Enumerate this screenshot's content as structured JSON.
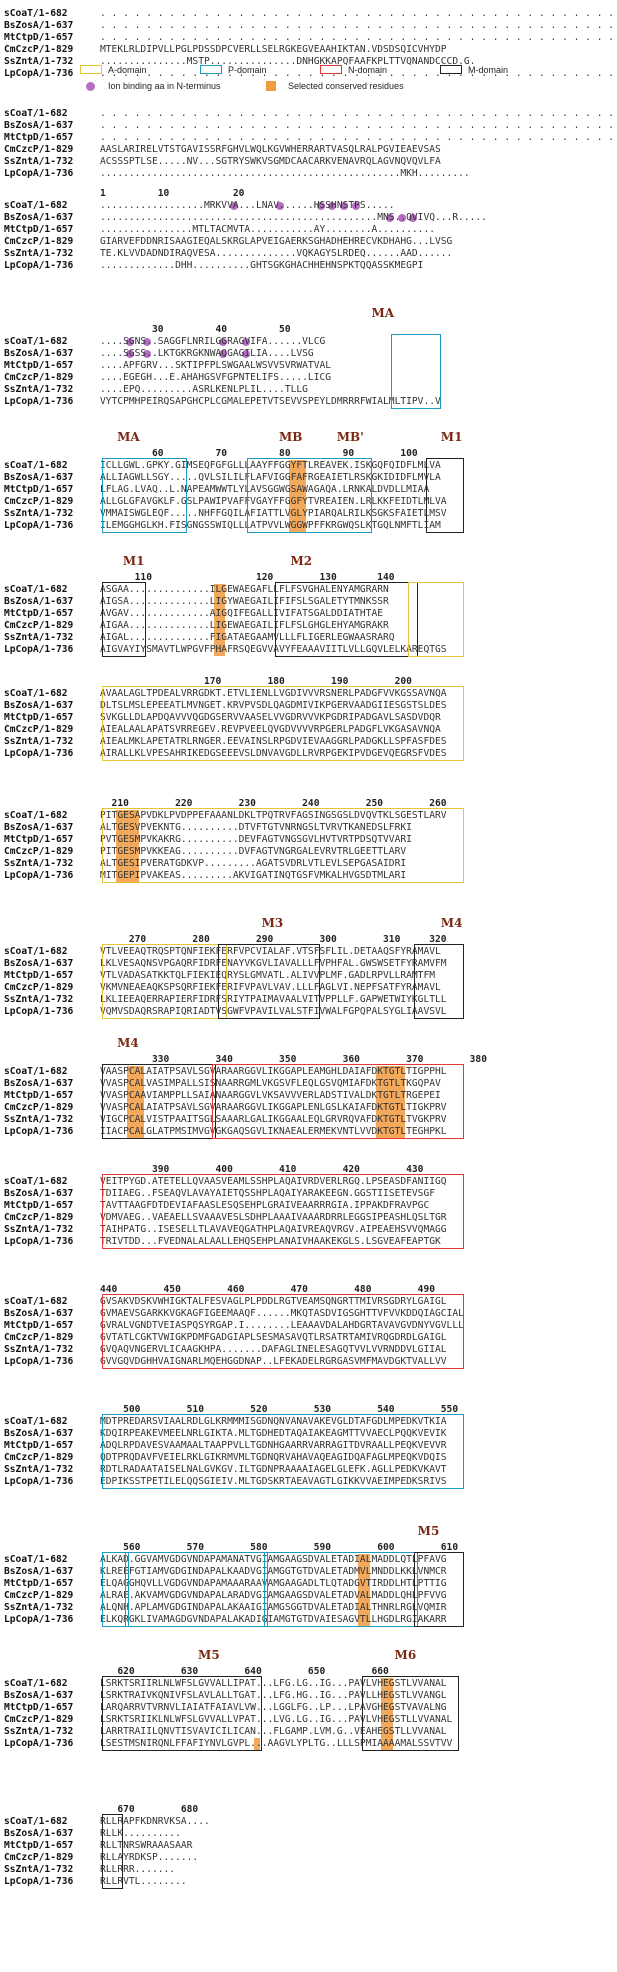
{
  "legend": {
    "a_domain": "A-domain",
    "p_domain": "P-domain",
    "n_domain": "N-domain",
    "m_domain": "M-domain",
    "ion_binding": "Ion binding aa in N-terminus",
    "conserved": "Selected conserved residues",
    "colors": {
      "a": "#e8c43a",
      "p": "#1f9bc0",
      "n": "#e0393a",
      "m": "#222222",
      "ion": "#b46fc4",
      "conserved": "#f19a3e"
    }
  },
  "sequence_names": [
    "sCoaT/1-682",
    "BsZosA/1-637",
    "MtCtpD/1-657",
    "CmCzcP/1-829",
    "SsZntA/1-732",
    "LpCopA/1-736"
  ],
  "blocks": [
    {
      "ruler": "",
      "labels": [],
      "rows": [
        ". . . . . . . . . . . . . . . . . . . . . . . . . . . . . . . . . . . . . . . . . . . . .",
        ". . . . . . . . . . . . . . . . . . . . . . . . . . . . . . . . . . . . . . . . . . . . .",
        ". . . . . . . . . . . . . . . . . . . . . . . . . . . . . . . . . . . . . . . . . . . . .",
        "MTEKLRLDIPVLLPGLPDSSDPCVERLLSELRGKEGVEAAHIKTAN.VDSDSQICVHYDP",
        "...............MSTP...............DNHGKKAPQFAAFKPLTTVQNANDCCCD.G.",
        ". . . . . . . . . . . . . . . . . . . . . . . . . . . . . . . . . . . . . . . . . . . . ."
      ]
    },
    {
      "ruler": "",
      "labels": [],
      "rows": [
        ". . . . . . . . . . . . . . . . . . . . . . . . . . . . . . . . . . . . . . . . . . . . .",
        ". . . . . . . . . . . . . . . . . . . . . . . . . . . . . . . . . . . . . . . . . . . . .",
        ". . . . . . . . . . . . . . . . . . . . . . . . . . . . . . . . . . . . . . . . . . . . .",
        "AASLARIRELVTSTGAVISSRFGHVLWQLKGVWHERRARTVASQLRALPGVIEAEVSAS",
        "ACSSSPTLSE.....NV...SGTRYSWKVSGMDCAACARKVENAVRQLAGVNQVQVLFA",
        "....................................................MKH........."
      ]
    },
    {
      "ruler": "1         10           20",
      "labels": [],
      "rows": [
        "..................MRKVVA...LNAV......HSSHNSTPS.....",
        "................................................MNS..QVIVQ...R.....",
        "................MTLTACMVTA...........AY........A..........",
        "GIARVEFDDNRISAAGIEQALSKRGLAPVEIGAERKSGHADHEHRECVKDHAHG...LVSG",
        "TE.KLVVDADNDIRAQVESA..............VQKAGYSLRDEQ......AAD......",
        ".............DHH..........GHTSGKGHACHHEHNSPKTQQASSKMEGPI"
      ]
    },
    {
      "ruler": "         30         40         50",
      "labels": [
        {
          "text": "MA",
          "col": 48
        }
      ],
      "rows": [
        "....SGNS..SAGGFLNRILGGRAGVIFA......VLCG",
        "....SGSS..LKTGKRGKNWAQGAGILIA....LVSG",
        "....APFGRV...SKTIPFPLSWGAALWSVVSVRWATVAL",
        "....EGEGH...E.AHAHGSVFGPNTELIFS.....LICG",
        "....EPQ.........ASRLKENLPLIL....TLLG",
        "VYTCPMHPEIRQSAPGHCPLCGMALEPETVTSEVVSPEYLDMRRRFWIALMLTIPV..V"
      ]
    },
    {
      "ruler": "         60         70         80         90        100",
      "labels": [
        {
          "text": "MA",
          "col": 4
        },
        {
          "text": "MB",
          "col": 32
        },
        {
          "text": "MB'",
          "col": 42
        },
        {
          "text": "M1",
          "col": 60
        }
      ],
      "rows": [
        "ICLLGWL.GPKY.GIMSEQFGFGLLLAAYFFGGYFTLREAVEK.ISKGQFQIDFLMLVA",
        "ALLIAGWLLSGY.....QVLSILILFLAFVIGGFAFRGEAIETLRSKGKIDIDFLMVLA",
        "LFLAG.LVAQ..L.NAPEAMWWTLYLAVSGGWGSAWAGAQA.LRNKALDVDLLMIAA",
        "ALLGLGFAVGKLF.GSLPAWIPVAFFVGAYFFGGFYTVREAIEN.LRLKKFEIDTLMLVA",
        "VMMAISWGLEQF.....NHFFGQILAFIATTLVGLYPIARQALRILKSGKSFAIETLMSV",
        "ILEMGGHGLKH.FISGNGSSWIQLLLATPVVLWGGWPFFKRGWQSLKTGQLNMFTLIAM"
      ]
    },
    {
      "ruler": "      110                  120        130       140",
      "labels": [
        {
          "text": "M1",
          "col": 5
        },
        {
          "text": "M2",
          "col": 34
        }
      ],
      "rows": [
        "ASGAA..............ILGEWAEGAFLLFLFSVGHALENYAMGRARN",
        "AIGSA..............LIGYWAEGAILIFIFSLSGALETYTMNKSSR",
        "AVGAV..............AIGQIFEGALLIVIFATSGALDDIATHTAE",
        "AIGAA..............LIGEWAEGAILIFLFSLGHGLEHYAMGRAKR",
        "AIGAL..............FIGATAEGAAMVLLLFLIGERLEGWAASRARQ",
        "AIGVAYIYSMAVTLWPGVFPHAFRSQEGVVAVYFEAAAVIITLVLLGQVLELKAREQTGS"
      ]
    },
    {
      "ruler": "                  170        180        190        200",
      "labels": [],
      "rows": [
        "AVAALAGLTPDEALVRRGDKT.ETVLIENLLVGDIVVVRSNERLPADGFVVKGSSAVNQA",
        "DLTSLMSLEPEEATLMVNGET.KRVPVSDLQAGDMIVIKPGERVAADGIIESGSTSLDES",
        "SVKGLLDLAPDQAVVVQGDGSERVVAASELVVGDRVVVKPGDRIPADGAVLSASDVDQR",
        "AIEALAALAPATSVRREGEV.REVPVEELQVGDVVVVRPGERLPADGFLVKGASAVNQA",
        "AIEALMKLAPETATRLRNGER.EEVAINSLRPGDVIEVAAGGRLPADGKLLSPFASFDES",
        "AIRALLKLVPESAHRIKEDGSEEEVSLDNVAVGDLLRVRPGEKIPVDGEVQEGRSFVDES"
      ]
    },
    {
      "ruler": "  210        220        230        240        250        260",
      "labels": [],
      "rows": [
        "PITGESAPVDKLPVDPPEFAAANLDKLTPQTRVFAGSINGSGSLDVQVTKLSGESTLARV",
        "ALTGESVPVEKNTG..........DTVFTGTVNRNGSLTVRVTKANEDSLFRKI",
        "PVTGESMPVKAKRG..........DEVFAGTVNGSGVLHVTVRTPDSQTVVARI",
        "PITGESMPVKKEAG..........DVFAGTVNGRGALEVRVTRLGEETTLARV",
        "ALTGESIPVERATGDKVP.........AGATSVDRLVTLEVLSEPGASAIDRI",
        "MITGEPIPVAKEAS.........AKVIGATINQTGSFVMKALHVGSDTMLARI"
      ]
    },
    {
      "ruler": "     270        280        290        300        310     320",
      "labels": [
        {
          "text": "M3",
          "col": 29
        },
        {
          "text": "M4",
          "col": 60
        }
      ],
      "rows": [
        "VTLVEEAQTRQSPTQNFIEKFERFVPCVIALAF.VTSFSFLIL.DETAAQSFYRAMAVL",
        "LKLVESAQNSVPGAQRFIDRFENAYVKGVLIAVALLLFVPHFAL.GWSWSETFYRAMVFM",
        "VTLVADASATKKTQLFIEKIEQRYSLGMVATL.ALIVVPLMF.GADLRPVLLRAMTFM",
        "VKMVNEAEAQKSPSQRFIEKFERIFVPAVLVAV.LLLFAGLVI.NEPFSATFYRAMAVL",
        "LKLIEEAQERRAPIERFIDRFSRIYTPAIMAVAALVITVPPLLF.GAPWETWIYKGLTLL",
        "VQMVSDAQRSRAPIQRIADTVSGWFVPAVILVALSTFIVWALFGPQPALSYGLIAAVSVL"
      ]
    },
    {
      "ruler": "         330        340        350        360        370        380",
      "labels": [
        {
          "text": "M4",
          "col": 4
        }
      ],
      "rows": [
        "VAASPCALAIATPSAVLSGVARAARGGVLIKGGAPLEAMGHLDAIAFDKTGTLTIGPPHL",
        "VVASPCALVASIMPALLSISNAARRGMLVKGSVFLEQLGSVQMIAFDKTGTLTKGQPAV",
        "VVASPCAAVIAMPPLLSAIANAARGGVLVKSAVVVERLADSTIVALDKTGTLTRGEPEI",
        "VVASPCALAIATPSAVLSGVARAARGGVLIKGGAPLENLGSLKAIAFDKTGTLTIGKPRV",
        "VIGCPCALVISTPAAITSGLSAAARLGALIKGGAALEQLGRVRQVAFDKTGTLTVGKPRV",
        "IIACPCALGLATPMSIMVGVGKGAQSGVLIKNAEALERMEKVNTLVVDKTGTLTEGHPKL"
      ]
    },
    {
      "ruler": "         390        400        410        420        430",
      "labels": [],
      "rows": [
        "VEITPYGD.ATETELLQVAASVEAMLSSHPLAQAIVRDVERLRGQ.LPSEASDFANIIGQ",
        "TDIIAEG..FSEAQVLAVAYAIETQSSHPLAQAIYARAKEEGN.GGSTIISETEVSGF",
        "TAVTTAAGFDTDEVIAFAASLESQSEHPLGRAIVEAARRRGIA.IPPAKDFRAVPGC",
        "VDMVAEG..VAEAELLSVAAAVESLSDHPLAAAIVAAARDRRLEGGSIPEASHLQSLTGR",
        "TAIHPATG..ISESELLTLAVAVEQGATHPLAQAIVREAQVRGV.AIPEAEHSVVQMAGG",
        "TRIVTDD...FVEDNALALAALLEHQSEHPLANAIVHAAKEKGLS.LSGVEAFEAPTGK"
      ]
    },
    {
      "ruler": "440        450        460        470        480        490",
      "labels": [],
      "rows": [
        "GVSAKVDSKVWHIGKTALFESVAGLPLPDDLRGTVEAMSQNGRTTMIVRSGDRYLGAIGL",
        "GVMAEVSGARKKVGKAGFIGEEMAAQF......MKQTASDVIGSGHTTVFVVKDDQIAGCIAL",
        "GVRALVGNDTVEIASPQSYRGAP.I........LEAAAVDALAHDGRTAVAVGVDNYVGVLLL",
        "GVTATLCGKTVWIGKPDMFGADGIAPLSESMASAVQTLRSATRTAMIVRQGDRDLGAIGL",
        "GVQAQVNGERVLICAAGKHPA.......DAFAGLINELESAGQTVVLVVRNDDVLGIIAL",
        "GVVGQVDGHHVAIGNARLMQEHGGDNAP..LFEKADELRGRGASVMFMAVDGKTVALLVV"
      ]
    },
    {
      "ruler": "    500        510        520        530        540        550",
      "labels": [],
      "rows": [
        "MDTPREDARSVIAALRDLGLKRMMMISGDNQNVANAVAKEVGLDTAFGDLMPEDKVTKIA",
        "KDQIRPEAKEVMEELNRLGIKTA.MLTGDHEDTAQAIAKEAGMTTVVAECLPQQKVEVIK",
        "ADQLRPDAVESVAAMAALTAAPPVLLTGDNHGAARRVARRAGITDVRAALLPEQKVEVVR",
        "QDTPRQDAVFVEIELRKLGIKRMVMLTGDNQRVAHAVAQEAGIDQAFAGLMPEQKVDQIS",
        "RDTLRADAATAISELNALGVKGV.ILTGDNPRAAAAIAGELGLEFK.AGLLPEDKVKAVT",
        "EDPIKSSTPETILELQQSGIEIV.MLTGDSKRTAEAVAGTLGIKKVVAEIMPEDKSRIVS"
      ]
    },
    {
      "ruler": "    560        570        580        590        600        610",
      "labels": [
        {
          "text": "M5",
          "col": 56
        }
      ],
      "rows": [
        "ALKAD.GGVAMVGDGVNDAPAMANATVGIAMGAAGSDVALETADIALMADDLQTLPFAVG",
        "KLREEFGTIAMVGDGINDAPALKAADVGIAMGGTGTDVALETADMVLMNDDLKKLVNMCR",
        "ELQAGGHQVLLVGDGVNDAPAMAAARAAVAMGAAGADLTLQTADGVTIRDDLHTLPTTIG",
        "ALRAE.AKVAMVGDGVNDAPALARADVGIAMGAAGSDVALETADVALMADDLQHLPFVVG",
        "ALQNH.APLAMVGDGINDAPALAKAAIGIAMGSGGTDVALETADIALTHNRLRGLVQMIR",
        "ELKQRGKLIVAMAGDGVNDAPALAKADIGIAMGTGTDVAIESAGVTLLHGDLRGIAKARR"
      ]
    },
    {
      "ruler": "   620        630        640        650        660",
      "labels": [
        {
          "text": "M5",
          "col": 18
        },
        {
          "text": "M6",
          "col": 52
        }
      ],
      "rows": [
        "LSRKTSRIIRLNLWFSLGVVALLIPAT...LFG.LG..IG...PAVLVHEGSTLVVANAL",
        "LSRKTRAIVKQNIVFSLAVLALLTGAT...LFG.HG..IG...PAVLLHEGSTLVVANGL",
        "LARQARRVTVRNVLIAIATFAIAVLVW...LGGLFG..LP...LPAVGHEGSTVAVALNG",
        "LSRKTSRIIKLNLWFSLGVVALLVPAT...LVG.LG..IG...PAVLVHEGSTLLVVANAL",
        "LARRTRAIILQNVTISVAVICILICAN...FLGAMP.LVM.G..VEAHEGSTLLVVANAL",
        "LSESTMSNIRQNLFFAFIYNVLGVPL...AAGVLYPLTG..LLLSPMIAAAAMALSSVTVV"
      ]
    },
    {
      "ruler": "   670        680",
      "labels": [],
      "rows": [
        "RLLRAPFKDNRVKSA....",
        "RLLK..........",
        "RLLTNRSWRAAASAAR",
        "RLLAYRDKSP.......",
        "RLLRRR.......",
        "RLLRVTL........"
      ]
    }
  ]
}
